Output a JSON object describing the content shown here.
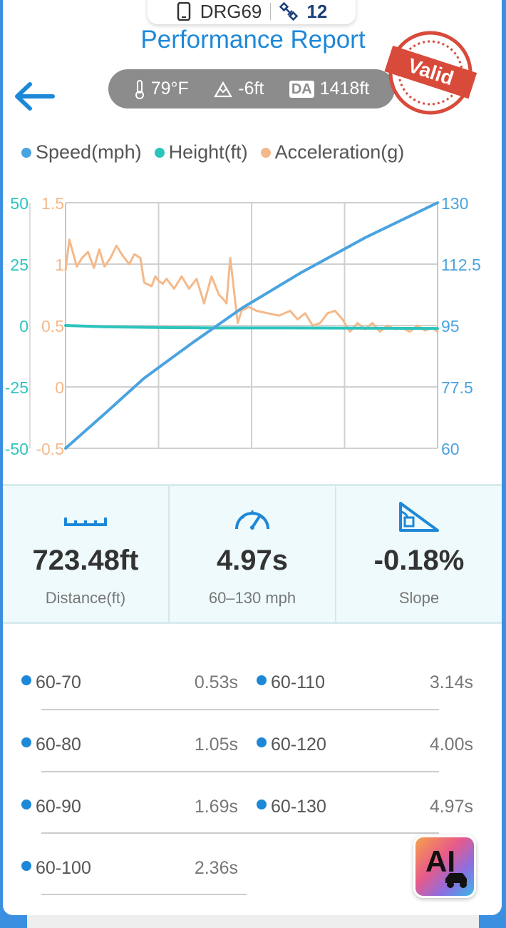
{
  "device": {
    "name": "DRG69",
    "satellites": "12"
  },
  "header": {
    "title": "Performance Report",
    "stamp": "Valid"
  },
  "conditions": {
    "temperature": "79°F",
    "altitude": "-6ft",
    "da_label": "DA",
    "density_altitude": "1418ft"
  },
  "legend": [
    {
      "label": "Speed(mph)",
      "color": "#4aa3e0"
    },
    {
      "label": "Height(ft)",
      "color": "#2cc4bd"
    },
    {
      "label": "Acceleration(g)",
      "color": "#f4b98a"
    }
  ],
  "chart_data": {
    "type": "line",
    "x_range": [
      0,
      4.97
    ],
    "height_axis": {
      "range": [
        -50,
        50
      ],
      "ticks": [
        "50",
        "25",
        "0",
        "-25",
        "-50"
      ],
      "color": "#2cc4bd"
    },
    "accel_axis": {
      "range": [
        -0.5,
        1.5
      ],
      "ticks": [
        "1.5",
        "1",
        "0.5",
        "0",
        "-0.5"
      ],
      "color": "#f4b98a"
    },
    "speed_axis": {
      "range": [
        60,
        130
      ],
      "ticks": [
        "130",
        "112.5",
        "95",
        "77.5",
        "60"
      ],
      "color": "#4aa3e0"
    },
    "grid": true,
    "series": [
      {
        "name": "Speed(mph)",
        "color": "#4aa3e0",
        "axis": "speed",
        "x": [
          0,
          0.53,
          1.05,
          1.69,
          2.36,
          3.14,
          4.0,
          4.97
        ],
        "y": [
          60,
          70,
          80,
          90,
          100,
          110,
          120,
          130
        ]
      },
      {
        "name": "Height(ft)",
        "color": "#2cc4bd",
        "axis": "height",
        "x": [
          0,
          0.5,
          1.2,
          2.0,
          3.0,
          4.0,
          4.97
        ],
        "y": [
          0,
          -0.5,
          -0.8,
          -1.0,
          -1.0,
          -1.1,
          -1.2
        ]
      },
      {
        "name": "Acceleration(g)",
        "color": "#f4b98a",
        "axis": "accel",
        "x": [
          0,
          0.05,
          0.15,
          0.22,
          0.3,
          0.38,
          0.45,
          0.52,
          0.6,
          0.68,
          0.75,
          0.85,
          0.92,
          1.0,
          1.05,
          1.15,
          1.2,
          1.25,
          1.3,
          1.35,
          1.45,
          1.55,
          1.65,
          1.75,
          1.85,
          1.95,
          2.05,
          2.1,
          2.15,
          2.2,
          2.3,
          2.35,
          2.45,
          2.55,
          2.7,
          2.85,
          3.0,
          3.1,
          3.2,
          3.3,
          3.4,
          3.5,
          3.6,
          3.7,
          3.8,
          3.9,
          4.0,
          4.1,
          4.2,
          4.3,
          4.4,
          4.5,
          4.6,
          4.7,
          4.8,
          4.9,
          4.97
        ],
        "y": [
          0.95,
          1.2,
          0.98,
          1.05,
          1.1,
          0.97,
          1.12,
          0.98,
          1.05,
          1.15,
          1.08,
          1.0,
          1.08,
          1.05,
          0.85,
          0.82,
          0.9,
          0.86,
          0.84,
          0.88,
          0.8,
          0.9,
          0.8,
          0.88,
          0.68,
          0.9,
          0.75,
          0.72,
          0.68,
          1.05,
          0.52,
          0.62,
          0.65,
          0.62,
          0.6,
          0.58,
          0.62,
          0.55,
          0.6,
          0.5,
          0.52,
          0.6,
          0.62,
          0.55,
          0.45,
          0.52,
          0.47,
          0.52,
          0.45,
          0.5,
          0.47,
          0.48,
          0.45,
          0.5,
          0.46,
          0.48,
          0.45
        ]
      }
    ]
  },
  "stats": [
    {
      "icon": "ruler-icon",
      "value": "723.48ft",
      "label": "Distance(ft)"
    },
    {
      "icon": "speedometer-icon",
      "value": "4.97s",
      "label": "60–130 mph"
    },
    {
      "icon": "slope-icon",
      "value": "-0.18%",
      "label": "Slope"
    }
  ],
  "splits": [
    {
      "range": "60-70",
      "time": "0.53s"
    },
    {
      "range": "60-80",
      "time": "1.05s"
    },
    {
      "range": "60-90",
      "time": "1.69s"
    },
    {
      "range": "60-100",
      "time": "2.36s"
    },
    {
      "range": "60-110",
      "time": "3.14s"
    },
    {
      "range": "60-120",
      "time": "4.00s"
    },
    {
      "range": "60-130",
      "time": "4.97s"
    }
  ],
  "ai_button": {
    "label": "AI"
  }
}
